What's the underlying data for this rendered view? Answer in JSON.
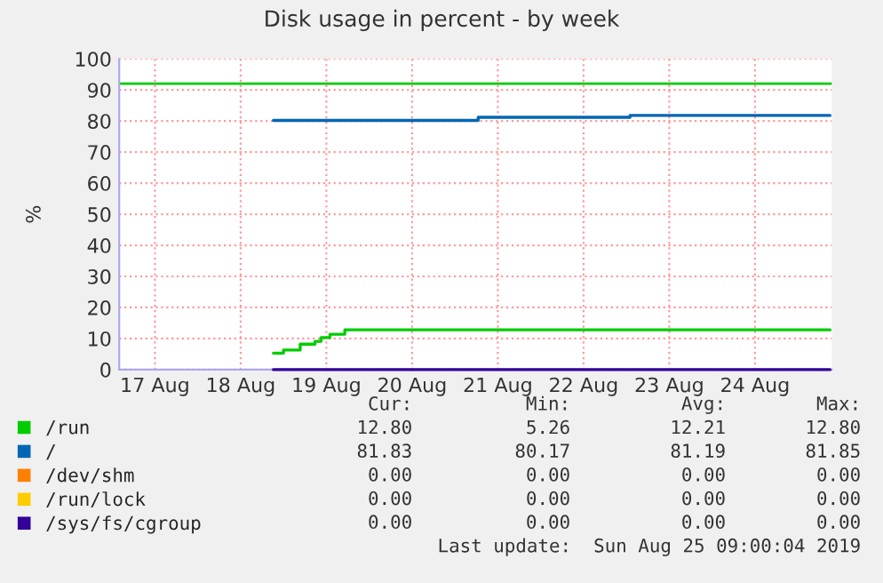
{
  "chart_data": {
    "type": "step",
    "title": "Disk usage in percent - by week",
    "ylabel": "%",
    "xlim": [
      "2019-08-17T02:00",
      "2019-08-25T09:30"
    ],
    "xticks": [
      {
        "value": "2019-08-17T12:00",
        "label": "17 Aug"
      },
      {
        "value": "2019-08-18T12:00",
        "label": "18 Aug"
      },
      {
        "value": "2019-08-19T12:00",
        "label": "19 Aug"
      },
      {
        "value": "2019-08-20T12:00",
        "label": "20 Aug"
      },
      {
        "value": "2019-08-21T12:00",
        "label": "21 Aug"
      },
      {
        "value": "2019-08-22T12:00",
        "label": "22 Aug"
      },
      {
        "value": "2019-08-23T12:00",
        "label": "23 Aug"
      },
      {
        "value": "2019-08-24T12:00",
        "label": "24 Aug"
      }
    ],
    "ylim": [
      0,
      100
    ],
    "yticks": [
      0,
      10,
      20,
      30,
      40,
      50,
      60,
      70,
      80,
      90,
      100
    ],
    "grid": true,
    "legend": "bottom",
    "ref_lines": [
      {
        "axis": "y",
        "value": 92,
        "color": "#00cc00"
      }
    ],
    "series": [
      {
        "name": "/run",
        "color": "#00cc00",
        "x": [
          "2019-08-18T21:10",
          "2019-08-19T00:00",
          "2019-08-19T04:40",
          "2019-08-19T08:50",
          "2019-08-19T10:30",
          "2019-08-19T13:00",
          "2019-08-19T17:10",
          "2019-08-25T09:00"
        ],
        "values": [
          5.3,
          6.3,
          8.2,
          9.1,
          10.3,
          11.4,
          12.8,
          12.8
        ]
      },
      {
        "name": "/",
        "color": "#0066b3",
        "x": [
          "2019-08-18T21:10",
          "2019-08-21T06:30",
          "2019-08-23T01:00",
          "2019-08-25T09:00"
        ],
        "values": [
          80.2,
          81.2,
          81.8,
          81.8
        ]
      },
      {
        "name": "/dev/shm",
        "color": "#ff8000"
      },
      {
        "name": "/run/lock",
        "color": "#ffcc00"
      },
      {
        "name": "/sys/fs/cgroup",
        "color": "#330099",
        "x": [
          "2019-08-18T21:10",
          "2019-08-25T09:00"
        ],
        "values": [
          0,
          0
        ]
      }
    ],
    "annotations": [
      "Cur:",
      "Min:",
      "Avg:",
      "Max:",
      "12.80",
      "5.26",
      "12.21",
      "12.80",
      "81.83",
      "80.17",
      "81.19",
      "81.85",
      "0.00",
      "0.00",
      "0.00",
      "0.00",
      "0.00",
      "0.00",
      "0.00",
      "0.00",
      "0.00",
      "0.00",
      "0.00",
      "0.00",
      "Last update:  Sun Aug 25 09:00:04 2019"
    ]
  }
}
